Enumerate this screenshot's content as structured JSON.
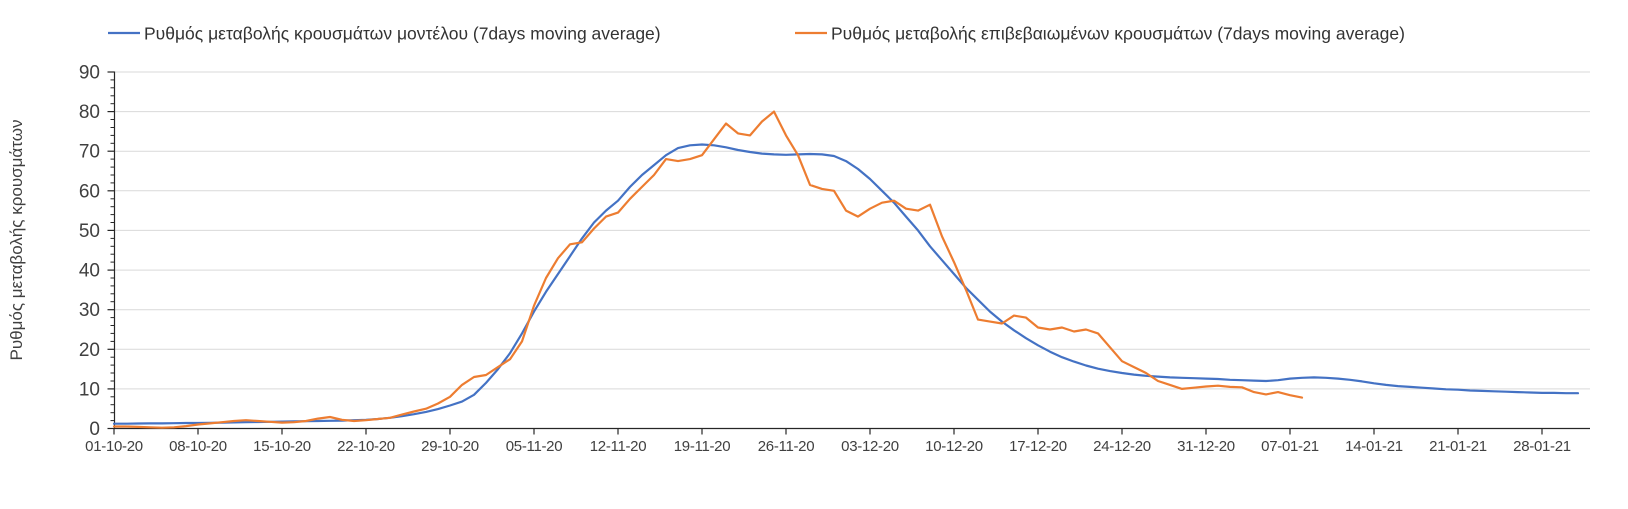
{
  "chart_data": {
    "type": "line",
    "title": "",
    "ylabel": "Ρυθμός μεταβολής κρουσμάτων",
    "ylim": [
      0,
      90
    ],
    "y_ticks": [
      0,
      10,
      20,
      30,
      40,
      50,
      60,
      70,
      80,
      90
    ],
    "y_minor_tick_step": 2,
    "grid": "horizontal-major",
    "legend_position": "top",
    "x_unit": "days",
    "x_start_date": "01-10-20",
    "x_tick_interval_days": 7,
    "x_tick_labels": [
      "01-10-20",
      "08-10-20",
      "15-10-20",
      "22-10-20",
      "29-10-20",
      "05-11-20",
      "12-11-20",
      "19-11-20",
      "26-11-20",
      "03-12-20",
      "10-12-20",
      "17-12-20",
      "24-12-20",
      "31-12-20",
      "07-01-21",
      "14-01-21",
      "21-01-21",
      "28-01-21"
    ],
    "series": [
      {
        "name": "Ρυθμός μεταβολής κρουσμάτων μοντέλου (7days moving average)",
        "color": "#4472C4",
        "start_day": 0,
        "values": [
          1.2,
          1.2,
          1.25,
          1.3,
          1.3,
          1.35,
          1.4,
          1.4,
          1.45,
          1.5,
          1.55,
          1.6,
          1.65,
          1.7,
          1.75,
          1.8,
          1.85,
          1.9,
          1.95,
          2.0,
          2.1,
          2.2,
          2.4,
          2.7,
          3.1,
          3.6,
          4.2,
          4.9,
          5.8,
          6.8,
          8.5,
          11.5,
          15,
          19,
          24,
          29.5,
          34.5,
          39,
          43.5,
          48,
          52,
          55,
          57.5,
          61,
          64,
          66.5,
          69,
          70.8,
          71.5,
          71.7,
          71.5,
          71,
          70.3,
          69.8,
          69.4,
          69.2,
          69.1,
          69.2,
          69.3,
          69.2,
          68.8,
          67.5,
          65.5,
          63,
          60,
          57,
          53.5,
          50,
          46,
          42.5,
          39,
          35.5,
          32.5,
          29.5,
          27,
          24.8,
          22.8,
          21,
          19.4,
          18,
          16.9,
          15.9,
          15.1,
          14.5,
          14,
          13.6,
          13.3,
          13.1,
          12.9,
          12.8,
          12.7,
          12.6,
          12.5,
          12.3,
          12.2,
          12.1,
          12,
          12.2,
          12.6,
          12.8,
          12.9,
          12.8,
          12.6,
          12.3,
          11.9,
          11.4,
          11,
          10.7,
          10.5,
          10.3,
          10.1,
          9.9,
          9.8,
          9.6,
          9.5,
          9.4,
          9.3,
          9.2,
          9.1,
          9.0,
          9.0,
          8.9,
          8.9
        ]
      },
      {
        "name": "Ρυθμός μεταβολής επιβεβαιωμένων κρουσμάτων (7days moving average)",
        "color": "#ED7D31",
        "start_day": 0,
        "values": [
          0.5,
          0.5,
          0.4,
          0.3,
          0.2,
          0.3,
          0.6,
          1.0,
          1.3,
          1.6,
          1.9,
          2.1,
          1.9,
          1.7,
          1.5,
          1.6,
          1.9,
          2.5,
          2.9,
          2.2,
          1.9,
          2.1,
          2.4,
          2.7,
          3.5,
          4.3,
          5.0,
          6.3,
          8.0,
          11.0,
          13.0,
          13.5,
          15.5,
          17.5,
          22.0,
          31.0,
          38.0,
          43.0,
          46.5,
          47.0,
          50.5,
          53.5,
          54.5,
          58.0,
          61.0,
          64.0,
          68.0,
          67.5,
          68.0,
          69.0,
          73.0,
          77.0,
          74.5,
          74.0,
          77.5,
          80.0,
          74.0,
          69.0,
          61.5,
          60.5,
          60.0,
          55.0,
          53.5,
          55.5,
          57.0,
          57.5,
          55.5,
          55.0,
          56.5,
          48.5,
          42.0,
          35.0,
          27.5,
          27.0,
          26.5,
          28.5,
          28.0,
          25.5,
          25.0,
          25.5,
          24.5,
          25.0,
          24.0,
          20.5,
          17.0,
          15.5,
          14.0,
          12.0,
          11.0,
          10.0,
          10.3,
          10.6,
          10.8,
          10.5,
          10.4,
          9.2,
          8.6,
          9.2,
          8.4,
          7.8
        ]
      }
    ]
  }
}
